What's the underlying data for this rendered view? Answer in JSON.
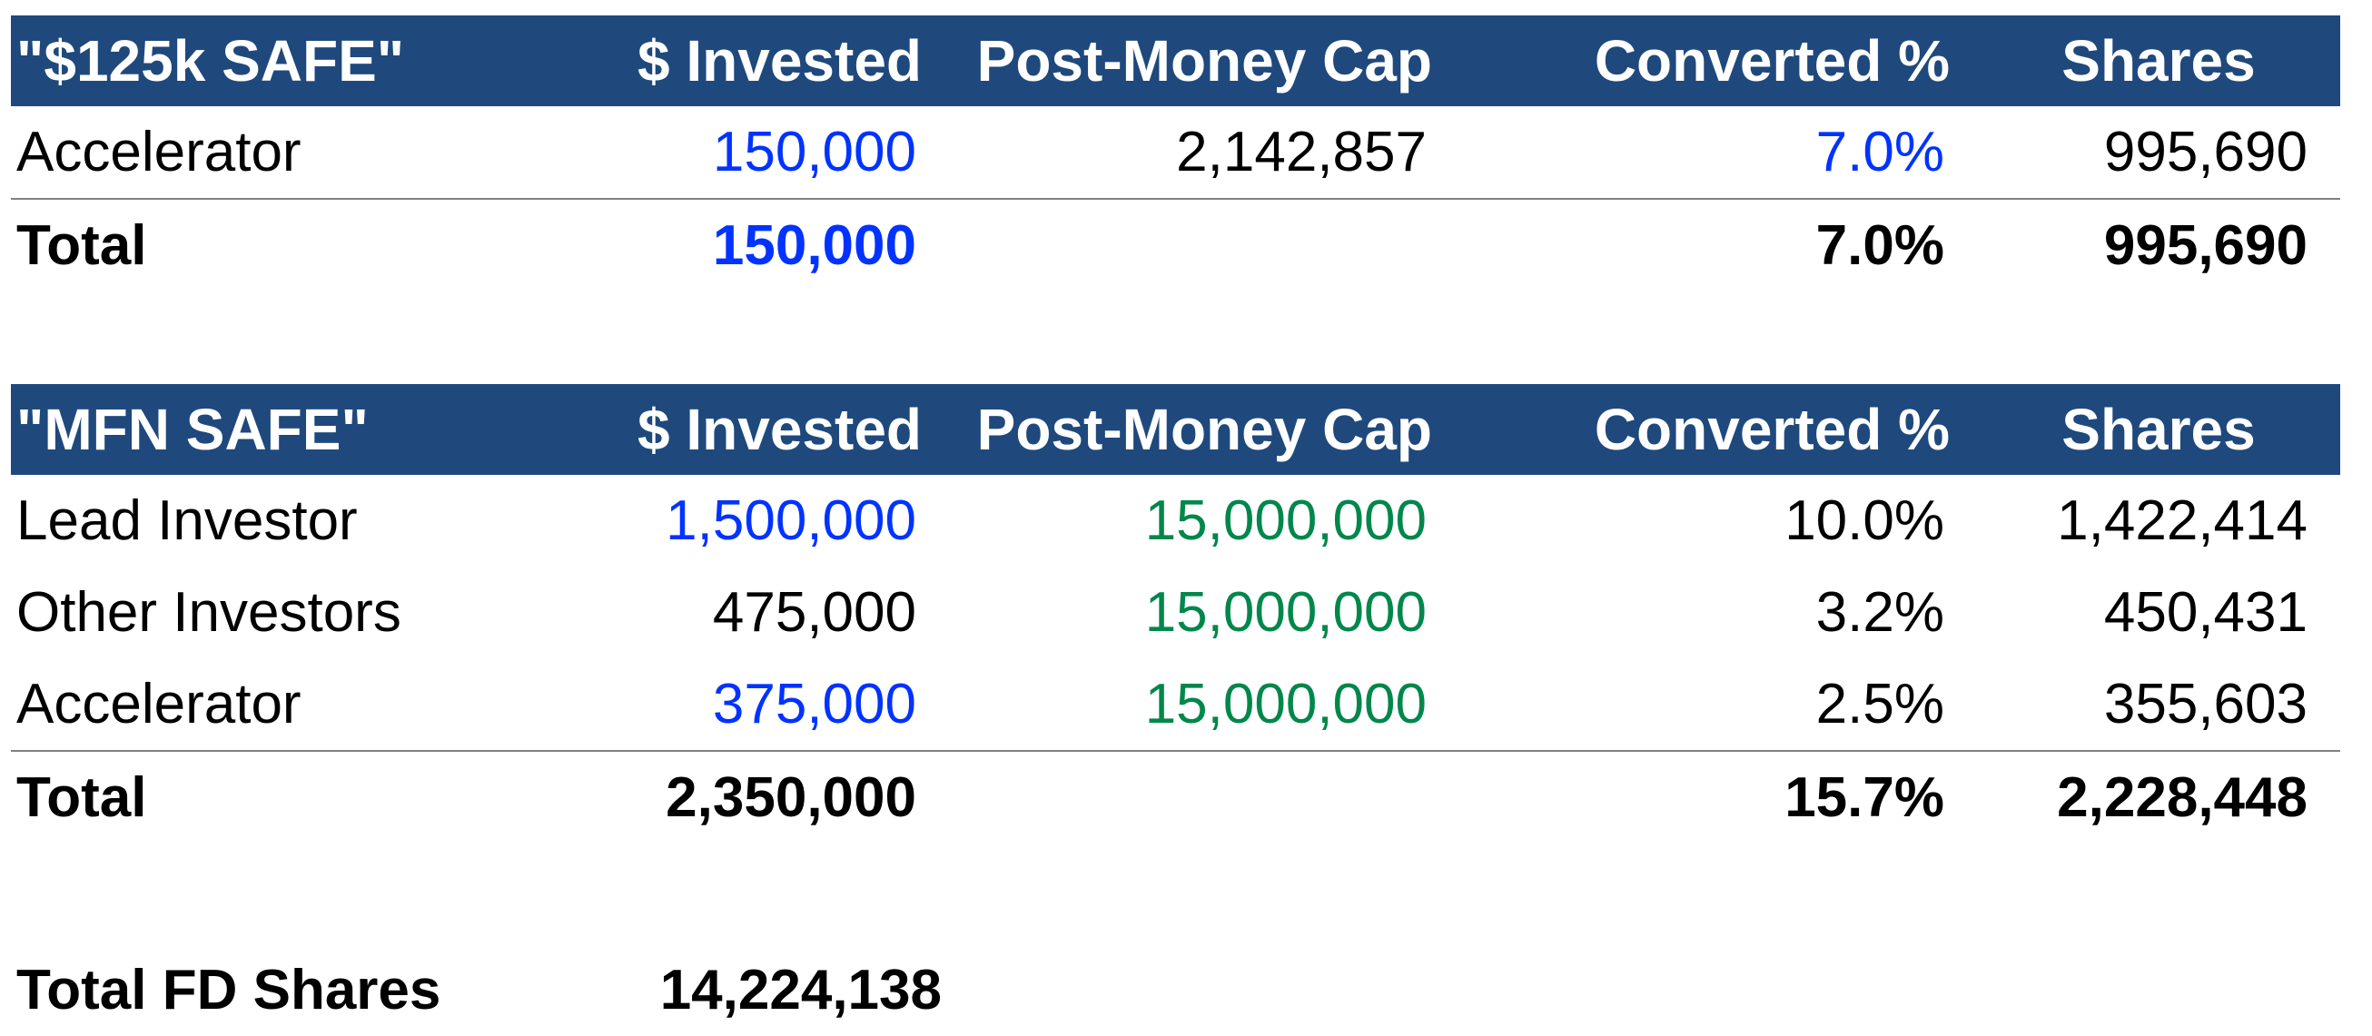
{
  "safe125k": {
    "title": "\"$125k SAFE\"",
    "headers": [
      "$ Invested",
      "Post-Money Cap",
      "Converted %",
      "Shares"
    ],
    "rows": [
      {
        "name": "Accelerator",
        "invested": "150,000",
        "cap": "2,142,857",
        "pct": "7.0%",
        "shares": "995,690"
      }
    ],
    "total": {
      "label": "Total",
      "invested": "150,000",
      "pct": "7.0%",
      "shares": "995,690"
    }
  },
  "mfnSafe": {
    "title": "\"MFN SAFE\"",
    "headers": [
      "$ Invested",
      "Post-Money Cap",
      "Converted %",
      "Shares"
    ],
    "rows": [
      {
        "name": "Lead Investor",
        "invested": "1,500,000",
        "cap": "15,000,000",
        "pct": "10.0%",
        "shares": "1,422,414"
      },
      {
        "name": "Other Investors",
        "invested": "475,000",
        "cap": "15,000,000",
        "pct": "3.2%",
        "shares": "450,431"
      },
      {
        "name": "Accelerator",
        "invested": "375,000",
        "cap": "15,000,000",
        "pct": "2.5%",
        "shares": "355,603"
      }
    ],
    "total": {
      "label": "Total",
      "invested": "2,350,000",
      "pct": "15.7%",
      "shares": "2,228,448"
    }
  },
  "summary": {
    "label": "Total FD Shares",
    "value": "14,224,138"
  },
  "colors": {
    "header_bg": "#1f497d",
    "header_text": "#ffffff",
    "input_blue": "#0033ff",
    "link_green": "#00874b",
    "divider": "#808080"
  }
}
